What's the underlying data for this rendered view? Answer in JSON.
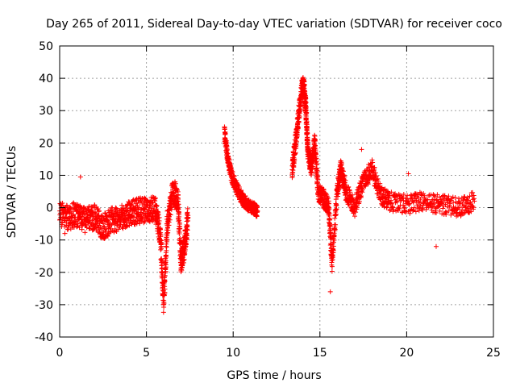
{
  "chart_data": {
    "type": "scatter",
    "title": "Day 265 of 2011, Sidereal Day-to-day VTEC variation (SDTVAR) for receiver coco",
    "xlabel": "GPS time / hours",
    "ylabel": "SDTVAR / TECUs",
    "xlim": [
      0,
      25
    ],
    "ylim": [
      -40,
      50
    ],
    "xticks": [
      0,
      5,
      10,
      15,
      20,
      25
    ],
    "xtick_labels": [
      "0",
      "5",
      "10",
      "15",
      "20",
      "25"
    ],
    "yticks": [
      -40,
      -30,
      -20,
      -10,
      0,
      10,
      20,
      30,
      40,
      50
    ],
    "ytick_labels": [
      "-40",
      "-30",
      "-20",
      "-10",
      "0",
      "10",
      "20",
      "30",
      "40",
      "50"
    ],
    "grid": true,
    "marker": "+",
    "color": "#ff0000",
    "series": [
      {
        "name": "SDTVAR",
        "segments": [
          {
            "x": [
              0.0,
              0.5,
              1.0,
              1.5,
              2.0,
              2.5,
              3.0,
              3.5,
              4.0,
              4.5,
              5.0,
              5.5,
              5.8,
              6.0,
              6.2,
              6.5,
              6.8,
              7.0,
              7.2,
              7.4
            ],
            "y": [
              -2,
              -3,
              -2,
              -4,
              -3,
              -6,
              -4,
              -3,
              -2,
              -1,
              -1,
              0,
              -8,
              -30,
              -5,
              5,
              3,
              -17,
              -12,
              -3
            ],
            "spread": 4
          },
          {
            "x": [
              9.5,
              9.7,
              9.9,
              10.2,
              10.5,
              10.8,
              11.1,
              11.4
            ],
            "y": [
              23,
              15,
              10,
              6,
              3,
              1,
              0,
              -1
            ],
            "spread": 2
          },
          {
            "x": [
              13.4,
              13.6,
              13.8,
              14.0,
              14.1,
              14.2,
              14.3,
              14.5,
              14.7,
              14.9,
              15.2,
              15.5,
              15.7,
              16.0,
              16.2,
              16.5,
              17.0,
              17.5,
              18.0,
              18.5,
              19.0,
              20.0,
              21.0,
              22.0,
              23.0,
              23.9
            ],
            "y": [
              12,
              20,
              30,
              38,
              36,
              30,
              18,
              12,
              20,
              5,
              3,
              0,
              -17,
              5,
              12,
              5,
              0,
              8,
              12,
              4,
              2,
              1,
              2,
              1,
              0,
              2
            ],
            "spread": 3
          }
        ],
        "outliers": [
          {
            "x": 1.2,
            "y": 9.5
          },
          {
            "x": 15.6,
            "y": -26
          },
          {
            "x": 21.7,
            "y": -12
          },
          {
            "x": 20.1,
            "y": 10.5
          },
          {
            "x": 17.4,
            "y": 18
          },
          {
            "x": 0.3,
            "y": -8
          }
        ]
      }
    ]
  }
}
